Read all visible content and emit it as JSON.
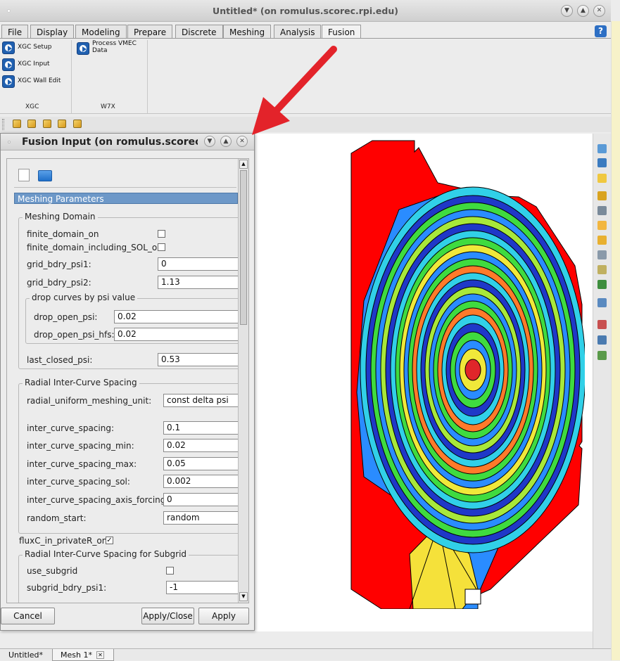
{
  "window": {
    "title": "Untitled* (on romulus.scorec.rpi.edu)"
  },
  "menu": {
    "tabs": [
      "File",
      "Display",
      "Modeling",
      "Prepare",
      "Discrete",
      "Meshing",
      "Analysis",
      "Fusion"
    ],
    "active": "Fusion"
  },
  "ribbon": {
    "xgc": {
      "label": "XGC",
      "buttons": [
        "XGC Setup",
        "XGC Input",
        "XGC Wall Edit"
      ]
    },
    "w7x": {
      "label": "W7X",
      "buttons": [
        "Process VMEC Data"
      ]
    }
  },
  "dialog": {
    "title": "Fusion Input (on romulus.scorec.rpi",
    "section": "Meshing Parameters",
    "meshing_domain": {
      "label": "Meshing Domain",
      "finite_domain_on": {
        "label": "finite_domain_on",
        "checked": false
      },
      "finite_domain_including_SOL_on": {
        "label": "finite_domain_including_SOL_on",
        "checked": false
      },
      "grid_bdry_psi1": {
        "label": "grid_bdry_psi1:",
        "value": "0"
      },
      "grid_bdry_psi2": {
        "label": "grid_bdry_psi2:",
        "value": "1.13"
      },
      "drop_curves": {
        "label": "drop curves by psi value",
        "drop_open_psi": {
          "label": "drop_open_psi:",
          "value": "0.02"
        },
        "drop_open_psi_hfs": {
          "label": "drop_open_psi_hfs:",
          "value": "0.02"
        }
      },
      "last_closed_psi": {
        "label": "last_closed_psi:",
        "value": "0.53"
      }
    },
    "radial": {
      "label": "Radial Inter-Curve Spacing",
      "radial_uniform_meshing_unit": {
        "label": "radial_uniform_meshing_unit:",
        "value": "const delta psi"
      },
      "inter_curve_spacing": {
        "label": "inter_curve_spacing:",
        "value": "0.1"
      },
      "inter_curve_spacing_min": {
        "label": "inter_curve_spacing_min:",
        "value": "0.02"
      },
      "inter_curve_spacing_max": {
        "label": "inter_curve_spacing_max:",
        "value": "0.05"
      },
      "inter_curve_spacing_sol": {
        "label": "inter_curve_spacing_sol:",
        "value": "0.002"
      },
      "inter_curve_spacing_axis_forcing": {
        "label": "inter_curve_spacing_axis_forcing:",
        "value": "0"
      },
      "random_start": {
        "label": "random_start:",
        "value": "random"
      }
    },
    "fluxC_in_privateR_on": {
      "label": "fluxC_in_privateR_on",
      "checked": true
    },
    "subgrid": {
      "label": "Radial Inter-Curve Spacing for Subgrid",
      "use_subgrid": {
        "label": "use_subgrid",
        "checked": false
      },
      "subgrid_bdry_psi1": {
        "label": "subgrid_bdry_psi1:",
        "value": "-1"
      }
    },
    "buttons": {
      "cancel": "Cancel",
      "apply_close": "Apply/Close",
      "apply": "Apply"
    }
  },
  "bottom_tabs": [
    "Untitled*",
    "Mesh 1*"
  ],
  "colors": {
    "domain": "#ff0000",
    "arrow": "#e3232a",
    "selection": "#6d98c8",
    "help": "#2d6fc4"
  }
}
